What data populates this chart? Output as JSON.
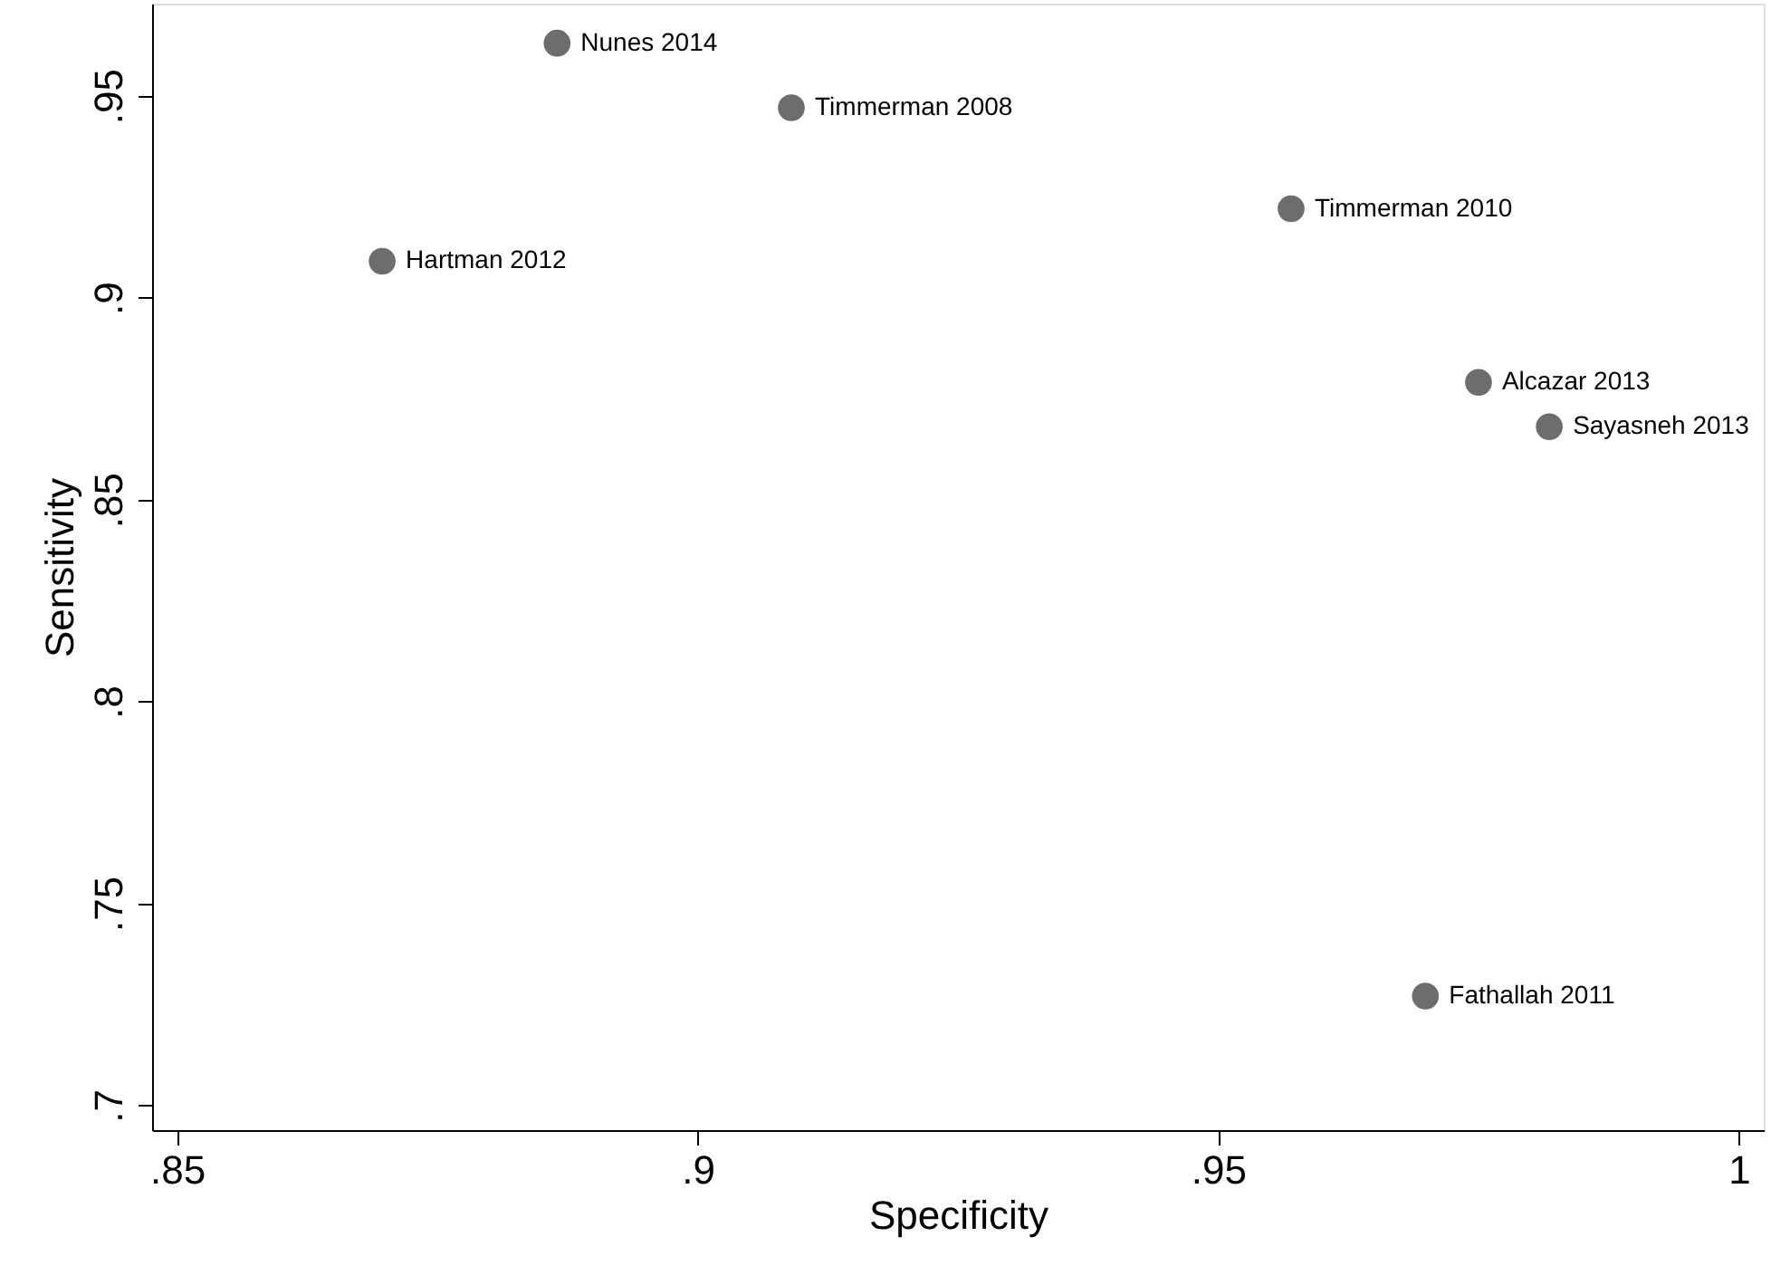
{
  "chart_data": {
    "type": "scatter",
    "xlabel": "Specificity",
    "ylabel": "Sensitivity",
    "xlim": [
      0.8476,
      1.0024
    ],
    "ylim": [
      0.6938,
      0.9728
    ],
    "xticks": [
      {
        "value": 0.85,
        "label": ".85"
      },
      {
        "value": 0.9,
        "label": ".9"
      },
      {
        "value": 0.95,
        "label": ".95"
      },
      {
        "value": 1,
        "label": "1"
      }
    ],
    "yticks": [
      {
        "value": 0.7,
        "label": ".7"
      },
      {
        "value": 0.75,
        "label": ".75"
      },
      {
        "value": 0.8,
        "label": ".8"
      },
      {
        "value": 0.85,
        "label": ".85"
      },
      {
        "value": 0.9,
        "label": ".9"
      },
      {
        "value": 0.95,
        "label": ".95"
      }
    ],
    "grid": false,
    "marker": "circle",
    "series": [
      {
        "name": "Nunes 2014",
        "color": "#6d6d6d",
        "x": [
          0.8865
        ],
        "values": [
          0.963
        ]
      },
      {
        "name": "Timmerman 2008",
        "color": "#6d6d6d",
        "x": [
          0.909
        ],
        "values": [
          0.947
        ]
      },
      {
        "name": "Timmerman 2010",
        "color": "#6d6d6d",
        "x": [
          0.957
        ],
        "values": [
          0.922
        ]
      },
      {
        "name": "Hartman 2012",
        "color": "#6d6d6d",
        "x": [
          0.8697
        ],
        "values": [
          0.909
        ]
      },
      {
        "name": "Alcazar 2013",
        "color": "#6d6d6d",
        "x": [
          0.975
        ],
        "values": [
          0.879
        ]
      },
      {
        "name": "Sayasneh 2013",
        "color": "#6d6d6d",
        "x": [
          0.9818
        ],
        "values": [
          0.868
        ]
      },
      {
        "name": "Fathallah 2011",
        "color": "#6d6d6d",
        "x": [
          0.9699
        ],
        "values": [
          0.727
        ]
      }
    ]
  }
}
